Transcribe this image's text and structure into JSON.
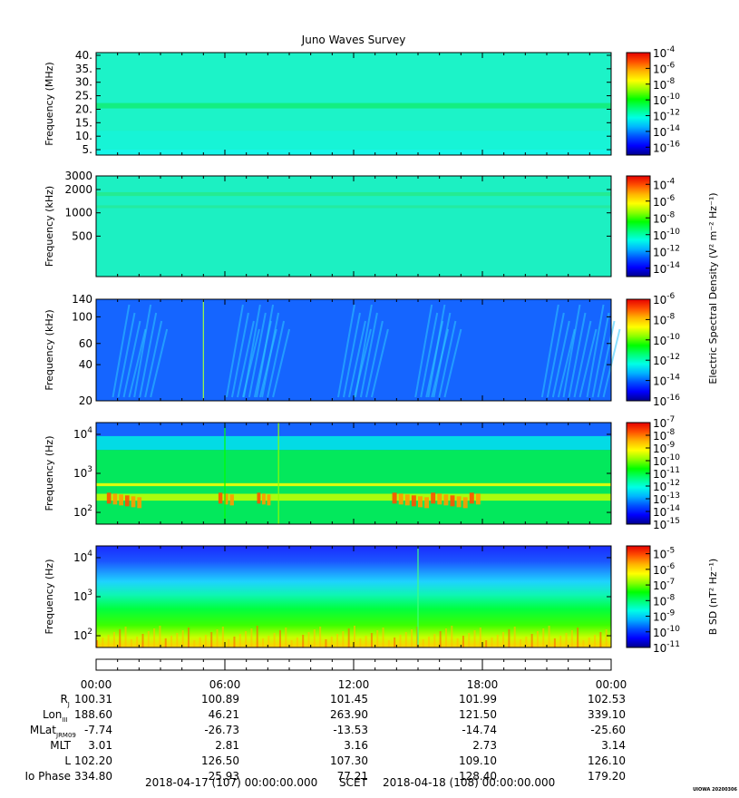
{
  "title": "Juno Waves Survey",
  "credit": "UIOWA 20200306",
  "colormap": [
    "#00008c",
    "#0000ff",
    "#0050ff",
    "#00b4ff",
    "#00ffe6",
    "#00ff78",
    "#00ff00",
    "#8cff00",
    "#ffff00",
    "#ffb400",
    "#ff5000",
    "#e60000"
  ],
  "chart_data": [
    {
      "type": "heatmap",
      "ylabel": "Frequency (MHz)",
      "yscale": "linear",
      "ylim": [
        3,
        41
      ],
      "yticks": [
        {
          "v": 5,
          "label": "5."
        },
        {
          "v": 10,
          "label": "10."
        },
        {
          "v": 15,
          "label": "15."
        },
        {
          "v": 20,
          "label": "20."
        },
        {
          "v": 25,
          "label": "25."
        },
        {
          "v": 30,
          "label": "30."
        },
        {
          "v": 35,
          "label": "35."
        },
        {
          "v": 40,
          "label": "40."
        }
      ],
      "colorbar": {
        "min": -17,
        "max": -4,
        "ticks": [
          -4,
          -6,
          -8,
          -10,
          -12,
          -14,
          -16
        ]
      },
      "background": "#1cf3c8",
      "features": [
        {
          "kind": "hband",
          "from": 20.3,
          "to": 22.3,
          "color": "#12ec74"
        },
        {
          "kind": "hband",
          "from": 5,
          "to": 12,
          "color": "#16f3d8"
        },
        {
          "kind": "hband",
          "from": 3,
          "to": 5,
          "color": "#16f6ee"
        }
      ]
    },
    {
      "type": "heatmap",
      "ylabel": "Frequency (kHz)",
      "yscale": "log",
      "ylim": [
        150,
        3000
      ],
      "yticks": [
        {
          "v": 500,
          "label": "500"
        },
        {
          "v": 1000,
          "label": "1000"
        },
        {
          "v": 2000,
          "label": "2000"
        },
        {
          "v": 3000,
          "label": "3000"
        }
      ],
      "colorbar": {
        "min": -15,
        "max": -3,
        "ticks": [
          -4,
          -6,
          -8,
          -10,
          -12,
          -14
        ],
        "label": "Electric Spectral Density (V² m⁻² Hz⁻¹)"
      },
      "background": "#1cf0c2",
      "features": [
        {
          "kind": "hband",
          "from": 1650,
          "to": 1850,
          "color": "#26ea8a"
        },
        {
          "kind": "hband",
          "from": 1150,
          "to": 1250,
          "color": "#26ea9a"
        }
      ]
    },
    {
      "type": "heatmap",
      "ylabel": "Frequency (kHz)",
      "yscale": "log",
      "ylim": [
        20,
        140
      ],
      "yticks": [
        {
          "v": 20,
          "label": "20"
        },
        {
          "v": 40,
          "label": "40"
        },
        {
          "v": 60,
          "label": "60"
        },
        {
          "v": 100,
          "label": "100"
        },
        {
          "v": 140,
          "label": "140"
        }
      ],
      "colorbar": {
        "min": -16,
        "max": -6,
        "ticks": [
          -6,
          -8,
          -10,
          -12,
          -14,
          -16
        ]
      },
      "background": "#1565ff",
      "features": [
        {
          "kind": "streaks",
          "hours": [
            1.5,
            2.5,
            6.8,
            7.6,
            8.2,
            12.0,
            12.8,
            15.6,
            16.2,
            21.5,
            22.5,
            23.6
          ],
          "color": "#2ec9ff"
        },
        {
          "kind": "vline",
          "hour": 5.0,
          "color": "#9cff40"
        }
      ]
    },
    {
      "type": "heatmap",
      "ylabel": "Frequency (Hz)",
      "yscale": "log",
      "ylim": [
        50,
        20000
      ],
      "yticks": [
        {
          "v": 100,
          "label": "10",
          "exp": "2"
        },
        {
          "v": 1000,
          "label": "10",
          "exp": "3"
        },
        {
          "v": 10000,
          "label": "10",
          "exp": "4"
        }
      ],
      "colorbar": {
        "min": -15,
        "max": -7,
        "ticks": [
          -7,
          -8,
          -9,
          -10,
          -11,
          -12,
          -13,
          -14,
          -15
        ]
      },
      "background": "#1565ff",
      "features": [
        {
          "kind": "hband",
          "from": 50,
          "to": 4000,
          "color": "#00ff40"
        },
        {
          "kind": "hband",
          "from": 4000,
          "to": 9000,
          "color": "#00f0e0"
        },
        {
          "kind": "hband",
          "from": 470,
          "to": 560,
          "color": "#ffff00"
        },
        {
          "kind": "hband",
          "from": 200,
          "to": 300,
          "color": "#c8ff00"
        },
        {
          "kind": "blobs",
          "ranges": [
            [
              0.5,
              2.2
            ],
            [
              5.7,
              6.5
            ],
            [
              7.5,
              8.2
            ],
            [
              13.8,
              18.0
            ]
          ],
          "from": 150,
          "to": 320,
          "color": "#ff9900"
        },
        {
          "kind": "vline",
          "hour": 6.0,
          "color": "#00ff00"
        },
        {
          "kind": "vline",
          "hour": 8.5,
          "color": "#8cff00"
        }
      ]
    },
    {
      "type": "heatmap",
      "ylabel": "Frequency (Hz)",
      "yscale": "log",
      "ylim": [
        50,
        20000
      ],
      "yticks": [
        {
          "v": 100,
          "label": "10",
          "exp": "2"
        },
        {
          "v": 1000,
          "label": "10",
          "exp": "3"
        },
        {
          "v": 10000,
          "label": "10",
          "exp": "4"
        }
      ],
      "colorbar": {
        "min": -11,
        "max": -4.5,
        "ticks": [
          -5,
          -6,
          -7,
          -8,
          -9,
          -10,
          -11
        ],
        "label": "B SD (nT² Hz⁻¹)"
      },
      "background": "#1565ff",
      "features": [
        {
          "kind": "gradient"
        },
        {
          "kind": "vline",
          "hour": 15.0,
          "color": "#40ff80"
        }
      ]
    }
  ],
  "time_axis": {
    "ticks": [
      "00:00",
      "06:00",
      "12:00",
      "18:00",
      "00:00"
    ],
    "range_hours": [
      0,
      24
    ]
  },
  "ephemeris": {
    "rows": [
      {
        "label": "R",
        "sub": "J",
        "values": [
          "100.31",
          "100.89",
          "101.45",
          "101.99",
          "102.53"
        ]
      },
      {
        "label": "Lon",
        "sub": "III",
        "values": [
          "188.60",
          "46.21",
          "263.90",
          "121.50",
          "339.10"
        ]
      },
      {
        "label": "MLat",
        "sub": "JRM09",
        "values": [
          "-7.74",
          "-26.73",
          "-13.53",
          "-14.74",
          "-25.60"
        ]
      },
      {
        "label": "MLT",
        "sub": "",
        "values": [
          "3.01",
          "2.81",
          "3.16",
          "2.73",
          "3.14"
        ]
      },
      {
        "label": "L",
        "sub": "",
        "values": [
          "102.20",
          "126.50",
          "107.30",
          "109.10",
          "126.10"
        ]
      },
      {
        "label": "Io Phase",
        "sub": "",
        "values": [
          "334.80",
          "25.93",
          "77.21",
          "128.40",
          "179.20"
        ]
      }
    ]
  },
  "footer": {
    "start": "2018-04-17 (107) 00:00:00.000",
    "scet": "SCET",
    "end": "2018-04-18 (108) 00:00:00.000"
  }
}
